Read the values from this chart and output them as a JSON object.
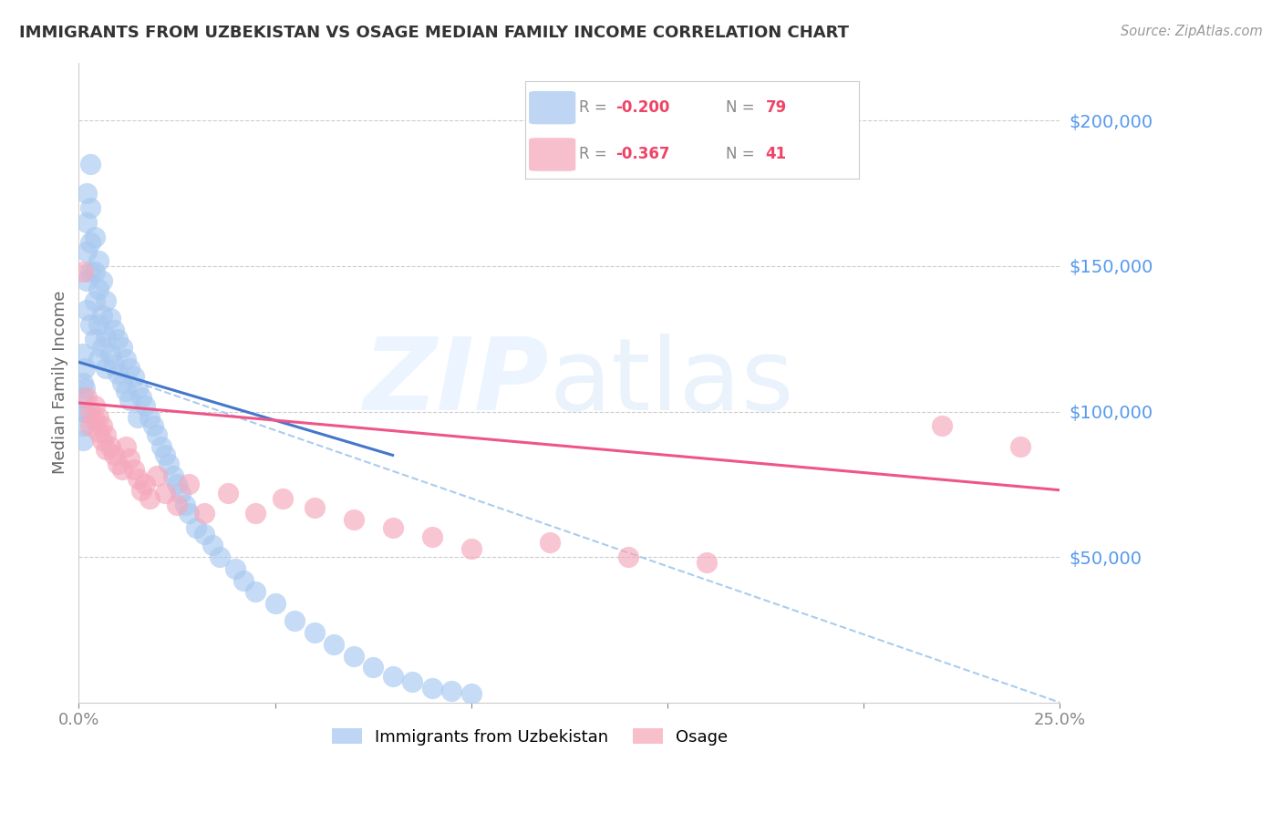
{
  "title": "IMMIGRANTS FROM UZBEKISTAN VS OSAGE MEDIAN FAMILY INCOME CORRELATION CHART",
  "source": "Source: ZipAtlas.com",
  "ylabel": "Median Family Income",
  "right_yticks": [
    50000,
    100000,
    150000,
    200000
  ],
  "right_ytick_labels": [
    "$50,000",
    "$100,000",
    "$150,000",
    "$200,000"
  ],
  "legend_blue_r": "-0.200",
  "legend_blue_n": "79",
  "legend_pink_r": "-0.367",
  "legend_pink_n": "41",
  "legend_label_blue": "Immigrants from Uzbekistan",
  "legend_label_pink": "Osage",
  "blue_color": "#a8c8f0",
  "pink_color": "#f5a8bc",
  "trend_blue_color": "#4477cc",
  "trend_pink_color": "#ee5588",
  "trend_dash_color": "#aaccee",
  "xlim": [
    0.0,
    0.25
  ],
  "ylim": [
    0,
    220000
  ],
  "blue_trend_x": [
    0.0,
    0.08
  ],
  "blue_trend_y": [
    117000,
    85000
  ],
  "pink_trend_x": [
    0.0,
    0.25
  ],
  "pink_trend_y": [
    103000,
    73000
  ],
  "dash_trend_x": [
    0.0,
    0.25
  ],
  "dash_trend_y": [
    117000,
    0
  ],
  "blue_x": [
    0.001,
    0.001,
    0.001,
    0.001,
    0.001,
    0.001,
    0.0015,
    0.0015,
    0.0015,
    0.002,
    0.002,
    0.002,
    0.002,
    0.002,
    0.003,
    0.003,
    0.003,
    0.003,
    0.003,
    0.004,
    0.004,
    0.004,
    0.004,
    0.005,
    0.005,
    0.005,
    0.005,
    0.006,
    0.006,
    0.006,
    0.007,
    0.007,
    0.007,
    0.008,
    0.008,
    0.009,
    0.009,
    0.01,
    0.01,
    0.011,
    0.011,
    0.012,
    0.012,
    0.013,
    0.013,
    0.014,
    0.015,
    0.015,
    0.016,
    0.017,
    0.018,
    0.019,
    0.02,
    0.021,
    0.022,
    0.023,
    0.024,
    0.025,
    0.026,
    0.027,
    0.028,
    0.03,
    0.032,
    0.034,
    0.036,
    0.04,
    0.042,
    0.045,
    0.05,
    0.055,
    0.06,
    0.065,
    0.07,
    0.075,
    0.08,
    0.085,
    0.09,
    0.095,
    0.1
  ],
  "blue_y": [
    120000,
    110000,
    105000,
    100000,
    95000,
    90000,
    115000,
    108000,
    100000,
    175000,
    165000,
    155000,
    145000,
    135000,
    185000,
    170000,
    158000,
    148000,
    130000,
    160000,
    148000,
    138000,
    125000,
    152000,
    142000,
    130000,
    118000,
    145000,
    133000,
    122000,
    138000,
    126000,
    115000,
    132000,
    120000,
    128000,
    116000,
    125000,
    113000,
    122000,
    110000,
    118000,
    107000,
    115000,
    104000,
    112000,
    108000,
    98000,
    105000,
    102000,
    98000,
    95000,
    92000,
    88000,
    85000,
    82000,
    78000,
    75000,
    72000,
    68000,
    65000,
    60000,
    58000,
    54000,
    50000,
    46000,
    42000,
    38000,
    34000,
    28000,
    24000,
    20000,
    16000,
    12000,
    9000,
    7000,
    5000,
    4000,
    3000
  ],
  "pink_x": [
    0.001,
    0.002,
    0.003,
    0.003,
    0.004,
    0.004,
    0.005,
    0.005,
    0.006,
    0.006,
    0.007,
    0.007,
    0.008,
    0.009,
    0.01,
    0.011,
    0.012,
    0.013,
    0.014,
    0.015,
    0.016,
    0.017,
    0.018,
    0.02,
    0.022,
    0.025,
    0.028,
    0.032,
    0.038,
    0.045,
    0.052,
    0.06,
    0.07,
    0.08,
    0.09,
    0.1,
    0.12,
    0.14,
    0.16,
    0.22,
    0.24
  ],
  "pink_y": [
    148000,
    105000,
    100000,
    95000,
    102000,
    97000,
    98000,
    93000,
    95000,
    90000,
    92000,
    87000,
    88000,
    85000,
    82000,
    80000,
    88000,
    84000,
    80000,
    77000,
    73000,
    75000,
    70000,
    78000,
    72000,
    68000,
    75000,
    65000,
    72000,
    65000,
    70000,
    67000,
    63000,
    60000,
    57000,
    53000,
    55000,
    50000,
    48000,
    95000,
    88000
  ]
}
